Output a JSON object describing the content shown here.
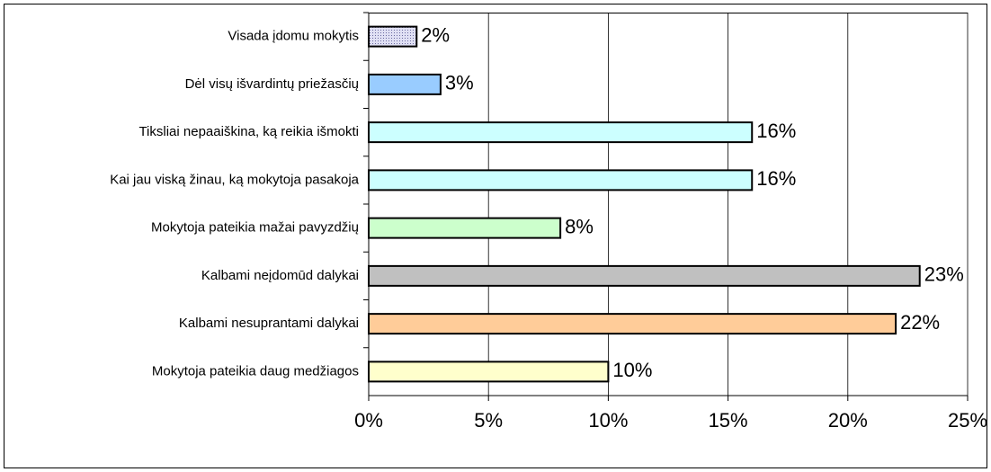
{
  "chart_data": {
    "type": "hbar",
    "categories": [
      "Visada įdomu mokytis",
      "Dėl visų išvardintų priežasčių",
      "Tiksliai nepaaiškina, ką reikia išmokti",
      "Kai jau viską žinau, ką mokytoja pasakoja",
      "Mokytoja pateikia mažai pavyzdžių",
      "Kalbami neįdomūd dalykai",
      "Kalbami nesuprantami dalykai",
      "Mokytoja pateikia daug medžiagos"
    ],
    "values": [
      2,
      3,
      16,
      16,
      8,
      23,
      22,
      10
    ],
    "value_labels": [
      "2%",
      "3%",
      "16%",
      "16%",
      "8%",
      "23%",
      "22%",
      "10%"
    ],
    "colors": [
      "#c8c8e8",
      "#99ccff",
      "#ccffff",
      "#ccffff",
      "#ccffcc",
      "#c0c0c0",
      "#ffcc99",
      "#ffffcc"
    ],
    "xlim": [
      0,
      25
    ],
    "xticks": [
      {
        "value": 0,
        "label": "0%"
      },
      {
        "value": 5,
        "label": "5%"
      },
      {
        "value": 10,
        "label": "10%"
      },
      {
        "value": 15,
        "label": "15%"
      },
      {
        "value": 20,
        "label": "20%"
      },
      {
        "value": 25,
        "label": "25%"
      }
    ],
    "grid": true
  }
}
